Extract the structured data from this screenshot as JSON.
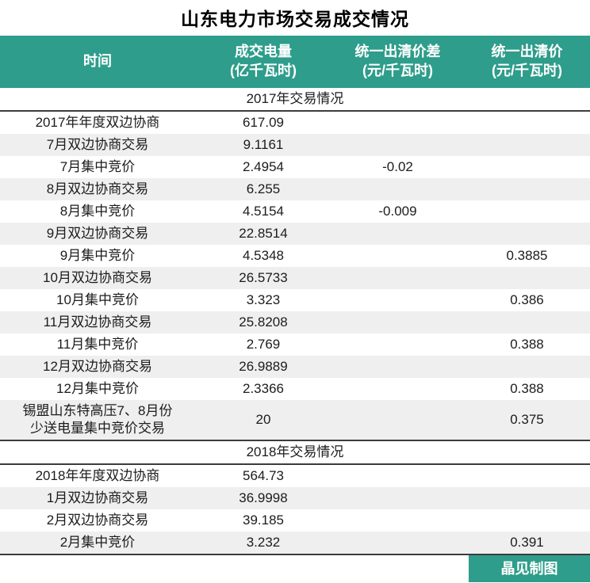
{
  "chart_data": {
    "type": "table",
    "title": "山东电力市场交易成交情况",
    "columns": [
      {
        "label": "时间",
        "unit": ""
      },
      {
        "label": "成交电量",
        "unit": "(亿千瓦时)"
      },
      {
        "label": "统一出清价差",
        "unit": "(元/千瓦时)"
      },
      {
        "label": "统一出清价",
        "unit": "(元/千瓦时)"
      }
    ],
    "sections": [
      {
        "header": "2017年交易情况",
        "rows": [
          {
            "time": "2017年年度双边协商",
            "volume": "617.09",
            "price_diff": "",
            "price": ""
          },
          {
            "time": "7月双边协商交易",
            "volume": "9.1161",
            "price_diff": "",
            "price": ""
          },
          {
            "time": "7月集中竞价",
            "volume": "2.4954",
            "price_diff": "-0.02",
            "price": ""
          },
          {
            "time": "8月双边协商交易",
            "volume": "6.255",
            "price_diff": "",
            "price": ""
          },
          {
            "time": "8月集中竞价",
            "volume": "4.5154",
            "price_diff": "-0.009",
            "price": ""
          },
          {
            "time": "9月双边协商交易",
            "volume": "22.8514",
            "price_diff": "",
            "price": ""
          },
          {
            "time": "9月集中竞价",
            "volume": "4.5348",
            "price_diff": "",
            "price": "0.3885"
          },
          {
            "time": "10月双边协商交易",
            "volume": "26.5733",
            "price_diff": "",
            "price": ""
          },
          {
            "time": "10月集中竞价",
            "volume": "3.323",
            "price_diff": "",
            "price": "0.386"
          },
          {
            "time": "11月双边协商交易",
            "volume": "25.8208",
            "price_diff": "",
            "price": ""
          },
          {
            "time": "11月集中竞价",
            "volume": "2.769",
            "price_diff": "",
            "price": "0.388"
          },
          {
            "time": "12月双边协商交易",
            "volume": "26.9889",
            "price_diff": "",
            "price": ""
          },
          {
            "time": "12月集中竞价",
            "volume": "2.3366",
            "price_diff": "",
            "price": "0.388"
          },
          {
            "time": "锡盟山东特高压7、8月份\n少送电量集中竞价交易",
            "volume": "20",
            "price_diff": "",
            "price": "0.375"
          }
        ]
      },
      {
        "header": "2018年交易情况",
        "rows": [
          {
            "time": "2018年年度双边协商",
            "volume": "564.73",
            "price_diff": "",
            "price": ""
          },
          {
            "time": "1月双边协商交易",
            "volume": "36.9998",
            "price_diff": "",
            "price": ""
          },
          {
            "time": "2月双边协商交易",
            "volume": "39.185",
            "price_diff": "",
            "price": ""
          },
          {
            "time": "2月集中竞价",
            "volume": "3.232",
            "price_diff": "",
            "price": "0.391"
          }
        ]
      }
    ],
    "credit": "晶见制图",
    "colors": {
      "accent_teal": "#2e9d8b",
      "row_alt_gray": "#efefef",
      "border_dark": "#3c3c3c",
      "header_text": "#ffffff",
      "body_text": "#1c1c1c"
    }
  }
}
